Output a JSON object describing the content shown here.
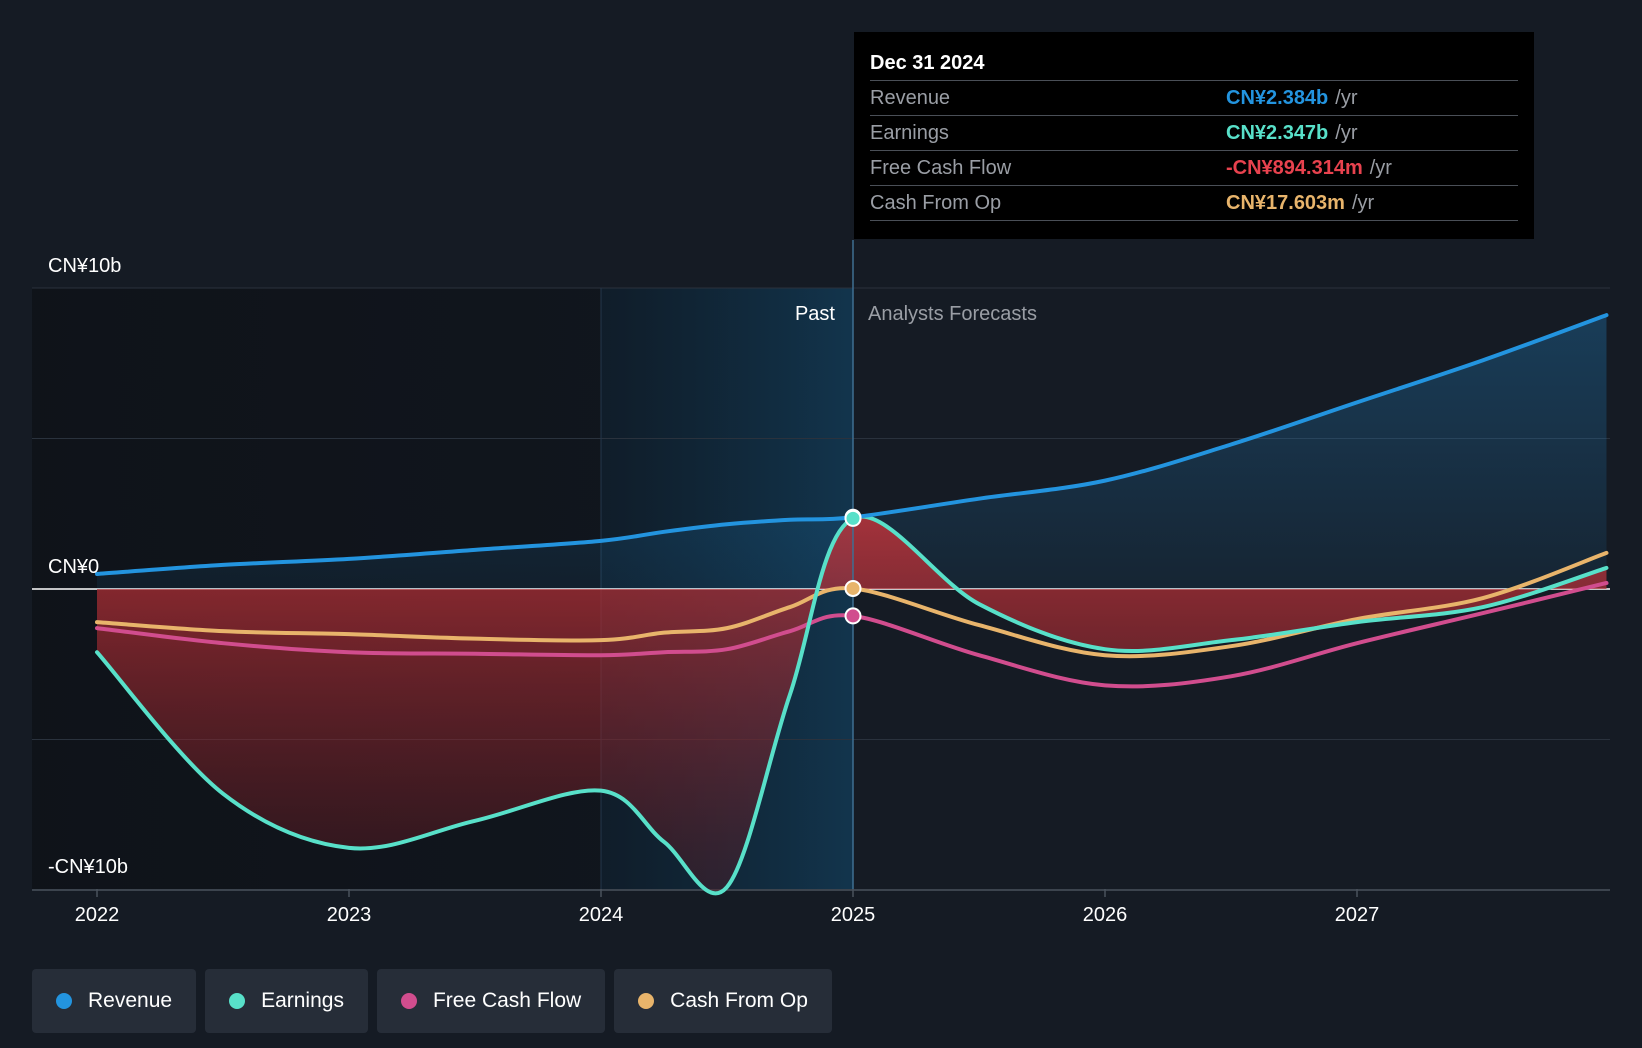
{
  "chart_data": {
    "type": "line",
    "y_axis_labels": [
      "CN¥10b",
      "CN¥0",
      "-CN¥10b"
    ],
    "ylim": [
      -10,
      10
    ],
    "y_unit": "CN¥b",
    "x_ticks": [
      "2022",
      "2023",
      "2024",
      "2025",
      "2026",
      "2027"
    ],
    "xlim": [
      2022.0,
      2027.99
    ],
    "divider_x": 2025.0,
    "highlight_start_x": 2024.0,
    "past_label": "Past",
    "forecast_label": "Analysts Forecasts",
    "grid": true,
    "series": [
      {
        "name": "Revenue",
        "color": "#2394df",
        "points": [
          [
            2022.0,
            0.5
          ],
          [
            2022.5,
            0.8
          ],
          [
            2023.0,
            1.0
          ],
          [
            2023.5,
            1.3
          ],
          [
            2024.0,
            1.6
          ],
          [
            2024.25,
            1.9
          ],
          [
            2024.5,
            2.15
          ],
          [
            2024.75,
            2.3
          ],
          [
            2025.0,
            2.384
          ],
          [
            2025.5,
            3.0
          ],
          [
            2026.0,
            3.6
          ],
          [
            2026.5,
            4.8
          ],
          [
            2027.0,
            6.2
          ],
          [
            2027.5,
            7.6
          ],
          [
            2027.99,
            9.1
          ]
        ]
      },
      {
        "name": "Earnings",
        "color": "#58e0c9",
        "points": [
          [
            2022.0,
            -2.1
          ],
          [
            2022.5,
            -6.8
          ],
          [
            2023.0,
            -8.6
          ],
          [
            2023.5,
            -7.7
          ],
          [
            2024.0,
            -6.7
          ],
          [
            2024.25,
            -8.4
          ],
          [
            2024.5,
            -9.9
          ],
          [
            2024.75,
            -3.5
          ],
          [
            2025.0,
            2.347
          ],
          [
            2025.5,
            -0.5
          ],
          [
            2026.0,
            -2.0
          ],
          [
            2026.5,
            -1.7
          ],
          [
            2027.0,
            -1.1
          ],
          [
            2027.5,
            -0.6
          ],
          [
            2027.99,
            0.7
          ]
        ]
      },
      {
        "name": "Free Cash Flow",
        "color": "#d14d8e",
        "points": [
          [
            2022.0,
            -1.3
          ],
          [
            2022.5,
            -1.8
          ],
          [
            2023.0,
            -2.1
          ],
          [
            2023.5,
            -2.15
          ],
          [
            2024.0,
            -2.2
          ],
          [
            2024.25,
            -2.1
          ],
          [
            2024.5,
            -2.0
          ],
          [
            2024.75,
            -1.4
          ],
          [
            2025.0,
            -0.894
          ],
          [
            2025.5,
            -2.2
          ],
          [
            2026.0,
            -3.2
          ],
          [
            2026.5,
            -2.9
          ],
          [
            2027.0,
            -1.8
          ],
          [
            2027.5,
            -0.8
          ],
          [
            2027.99,
            0.2
          ]
        ]
      },
      {
        "name": "Cash From Op",
        "color": "#e8b46b",
        "points": [
          [
            2022.0,
            -1.1
          ],
          [
            2022.5,
            -1.4
          ],
          [
            2023.0,
            -1.5
          ],
          [
            2023.5,
            -1.65
          ],
          [
            2024.0,
            -1.7
          ],
          [
            2024.25,
            -1.45
          ],
          [
            2024.5,
            -1.3
          ],
          [
            2024.75,
            -0.6
          ],
          [
            2025.0,
            0.018
          ],
          [
            2025.5,
            -1.2
          ],
          [
            2026.0,
            -2.2
          ],
          [
            2026.5,
            -1.9
          ],
          [
            2027.0,
            -1.0
          ],
          [
            2027.5,
            -0.3
          ],
          [
            2027.99,
            1.2
          ]
        ]
      }
    ]
  },
  "tooltip": {
    "date": "Dec 31 2024",
    "unit": "/yr",
    "rows": [
      {
        "label": "Revenue",
        "value": "CN¥2.384b",
        "color": "#2394df"
      },
      {
        "label": "Earnings",
        "value": "CN¥2.347b",
        "color": "#58e0c9"
      },
      {
        "label": "Free Cash Flow",
        "value": "-CN¥894.314m",
        "color": "#e8424e"
      },
      {
        "label": "Cash From Op",
        "value": "CN¥17.603m",
        "color": "#e8b46b"
      }
    ]
  },
  "legend": [
    {
      "label": "Revenue",
      "color": "#2394df"
    },
    {
      "label": "Earnings",
      "color": "#58e0c9"
    },
    {
      "label": "Free Cash Flow",
      "color": "#d14d8e"
    },
    {
      "label": "Cash From Op",
      "color": "#e8b46b"
    }
  ]
}
